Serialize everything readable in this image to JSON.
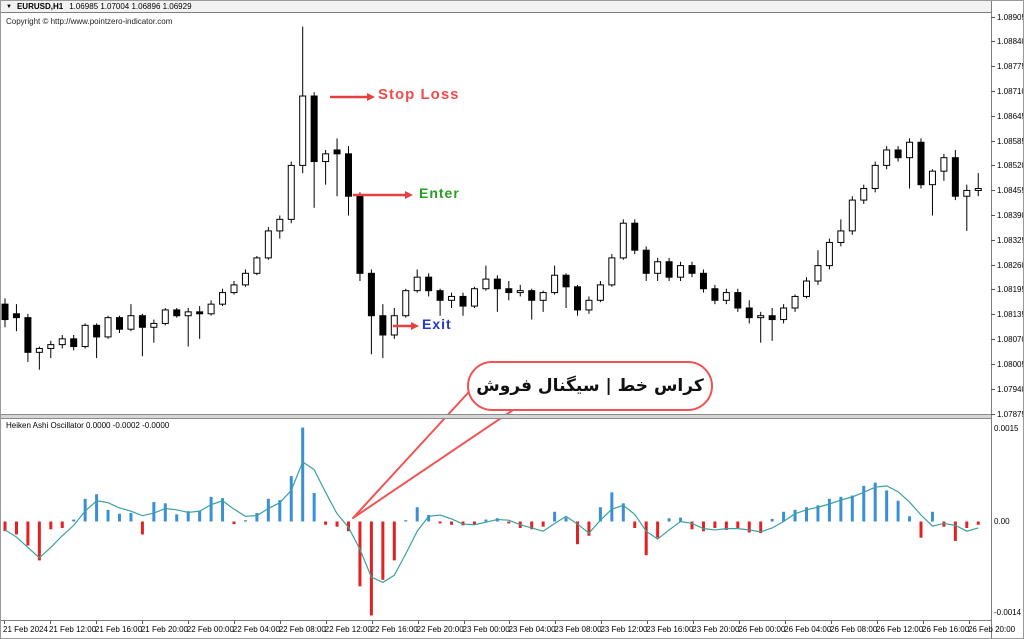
{
  "header": {
    "dropdown_icon": "▼",
    "symbol": "EURUSD,H1",
    "ohlc_quote": "1.06985 1.07004 1.06896 1.06929",
    "copyright": "Copyright © http://www.pointzero-indicator.com"
  },
  "annotations": {
    "stop_loss_label": "Stop Loss",
    "enter_label": "Enter",
    "exit_label": "Exit",
    "callout_text": "کراس خط | سیگنال فروش"
  },
  "oscillator_panel": {
    "label": "Heiken Ashi Oscillator 0.0000 -0.0002 -0.0000",
    "scale_labels": [
      "0.0015",
      "0.00",
      "-0.0014"
    ]
  },
  "price_axis": {
    "labels": [
      "1.08905",
      "1.08840",
      "1.08775",
      "1.08710",
      "1.08645",
      "1.08585",
      "1.08520",
      "1.08455",
      "1.08390",
      "1.08325",
      "1.08260",
      "1.08195",
      "1.08135",
      "1.08070",
      "1.08005",
      "1.07940",
      "1.07875"
    ]
  },
  "time_axis": {
    "labels": [
      "21 Feb 2024",
      "21 Feb 12:00",
      "21 Feb 16:00",
      "21 Feb 20:00",
      "22 Feb 00:00",
      "22 Feb 04:00",
      "22 Feb 08:00",
      "22 Feb 12:00",
      "22 Feb 16:00",
      "22 Feb 20:00",
      "23 Feb 00:00",
      "23 Feb 04:00",
      "23 Feb 08:00",
      "23 Feb 12:00",
      "23 Feb 16:00",
      "23 Feb 20:00",
      "26 Feb 00:00",
      "26 Feb 04:00",
      "26 Feb 08:00",
      "26 Feb 12:00",
      "26 Feb 16:00",
      "26 Feb 20:00"
    ]
  },
  "colors": {
    "bull_fill": "#ffffff",
    "bear_fill": "#000000",
    "candle_outline": "#000000",
    "hist_up": "#3b8fd4",
    "hist_down": "#e02222",
    "signal_line": "#3aa0a0",
    "arrow_red": "#e84040",
    "callout_border": "#f15353"
  },
  "chart_data": [
    {
      "type": "candlestick",
      "name": "EURUSD H1 price",
      "pip_base": 1.08,
      "pip_size": 0.0001,
      "y_range": [
        1.07875,
        1.08905
      ],
      "grid": false,
      "ohlc_pips": [
        [
          16,
          17.5,
          10,
          12
        ],
        [
          13.5,
          16,
          9,
          12.5
        ],
        [
          12.5,
          13.5,
          1,
          3.5
        ],
        [
          3.5,
          5,
          -1,
          4.5
        ],
        [
          4.5,
          6.5,
          2,
          5.5
        ],
        [
          5.5,
          8,
          4.5,
          7
        ],
        [
          7,
          8,
          4,
          5
        ],
        [
          5,
          11,
          4.5,
          10.5
        ],
        [
          10.5,
          11,
          2,
          7.5
        ],
        [
          7.5,
          13,
          7,
          12.5
        ],
        [
          12.5,
          13,
          8.5,
          9.5
        ],
        [
          9.5,
          16,
          9,
          13
        ],
        [
          13,
          13.5,
          2.5,
          10
        ],
        [
          10,
          12,
          6,
          11
        ],
        [
          11,
          15,
          10.5,
          14.5
        ],
        [
          14.5,
          15,
          12.5,
          13
        ],
        [
          13,
          15,
          5,
          14
        ],
        [
          14,
          15.5,
          7,
          13.5
        ],
        [
          13.5,
          17,
          13,
          16
        ],
        [
          16,
          20,
          15.5,
          19
        ],
        [
          19,
          22,
          18.5,
          21
        ],
        [
          21,
          25,
          20.5,
          24
        ],
        [
          24,
          28.5,
          23.5,
          28
        ],
        [
          28,
          36,
          27.5,
          35
        ],
        [
          35,
          39,
          33,
          38
        ],
        [
          38,
          53,
          37,
          52
        ],
        [
          52,
          88,
          50,
          70
        ],
        [
          70,
          71,
          41,
          53
        ],
        [
          53,
          56,
          47,
          55
        ],
        [
          56,
          59,
          44,
          55
        ],
        [
          55,
          57,
          39,
          44
        ],
        [
          44,
          45,
          22,
          24
        ],
        [
          24,
          25,
          3,
          13
        ],
        [
          13,
          16,
          2,
          8
        ],
        [
          8,
          15,
          7,
          13
        ],
        [
          13,
          20,
          12.5,
          19.5
        ],
        [
          19.5,
          25,
          19,
          23
        ],
        [
          23,
          24,
          18,
          19.5
        ],
        [
          19.5,
          20,
          13,
          17
        ],
        [
          17,
          19,
          15,
          18
        ],
        [
          18,
          19,
          13,
          15.5
        ],
        [
          15.5,
          20.5,
          15,
          20
        ],
        [
          20,
          26,
          19.5,
          22.5
        ],
        [
          22.5,
          23.5,
          14,
          20
        ],
        [
          20,
          22,
          17,
          19
        ],
        [
          19,
          21,
          18,
          19.5
        ],
        [
          19.5,
          20,
          12,
          17
        ],
        [
          17,
          19.5,
          14,
          19
        ],
        [
          19,
          26,
          18.5,
          23.5
        ],
        [
          23.5,
          24,
          15,
          20.5
        ],
        [
          20.5,
          21,
          13,
          14.5
        ],
        [
          14.5,
          18,
          13.5,
          17
        ],
        [
          17,
          22,
          16.5,
          21
        ],
        [
          21,
          29,
          20.5,
          28
        ],
        [
          28,
          38,
          27.5,
          37
        ],
        [
          37,
          38,
          29,
          30
        ],
        [
          30,
          31,
          22,
          24
        ],
        [
          24,
          28,
          22,
          27
        ],
        [
          27,
          28,
          22,
          23
        ],
        [
          23,
          27,
          22,
          26
        ],
        [
          26,
          27,
          23,
          24
        ],
        [
          24,
          25,
          19,
          20
        ],
        [
          20,
          21,
          16,
          17
        ],
        [
          17,
          20,
          16,
          19
        ],
        [
          19,
          20,
          14,
          15
        ],
        [
          15,
          17,
          11,
          12.5
        ],
        [
          12.5,
          14,
          6,
          13
        ],
        [
          13,
          15,
          6.5,
          12
        ],
        [
          12,
          16,
          11,
          15
        ],
        [
          15,
          18.5,
          14,
          18
        ],
        [
          18,
          23,
          17.5,
          22
        ],
        [
          22,
          30,
          21,
          26
        ],
        [
          26,
          33,
          25,
          32
        ],
        [
          32,
          38,
          31,
          35
        ],
        [
          35,
          44,
          34,
          43
        ],
        [
          43,
          47,
          42,
          46
        ],
        [
          46,
          53,
          45,
          52
        ],
        [
          52,
          57,
          51,
          56
        ],
        [
          56,
          57,
          53,
          54
        ],
        [
          54,
          59,
          46,
          58
        ],
        [
          58,
          59,
          46,
          47
        ],
        [
          47,
          51,
          39,
          50.5
        ],
        [
          50.5,
          55,
          48,
          54
        ],
        [
          54,
          56,
          43,
          44
        ],
        [
          44,
          47,
          35,
          45.5
        ],
        [
          45.5,
          50,
          44,
          46
        ]
      ]
    },
    {
      "type": "bar",
      "name": "Heiken Ashi Oscillator",
      "unit": 0.0001,
      "ylim": [
        -0.0014,
        0.0015
      ],
      "values_pips": [
        -1.5,
        -2,
        -3.7,
        -6,
        -1.2,
        -1,
        0.3,
        3.5,
        4.2,
        1.8,
        1.2,
        1.3,
        -2,
        3,
        2.8,
        1.1,
        1.6,
        1.7,
        3.8,
        3.6,
        -0.4,
        0.2,
        1.3,
        3.5,
        3.3,
        7,
        14.5,
        4.4,
        -0.5,
        -0.8,
        -1.5,
        -10,
        -14.5,
        -9,
        -6,
        0.2,
        2.2,
        1,
        -0.3,
        -0.5,
        -0.6,
        -0.4,
        0.3,
        0.5,
        -0.3,
        -1,
        -1.2,
        -0.8,
        1.5,
        0.6,
        -3.5,
        -2.2,
        2.2,
        4.5,
        2.8,
        -1,
        -5.2,
        -2.5,
        0.5,
        0.6,
        -1.2,
        -1.5,
        -1,
        -1.3,
        -1,
        -1.7,
        -1.8,
        0.4,
        1.5,
        1.8,
        2.2,
        2.5,
        3.5,
        3.8,
        4,
        5.5,
        6,
        4.8,
        3.2,
        0.8,
        -2.5,
        1.5,
        -0.8,
        -3,
        -1,
        -0.5
      ],
      "signal_pips": [
        -1.3,
        -2.4,
        -4,
        -5.6,
        -4,
        -2.2,
        -0.6,
        1.6,
        3.2,
        2.9,
        2.1,
        1.6,
        0.9,
        1.3,
        2,
        1.8,
        1.4,
        1.6,
        2.6,
        3.2,
        1.9,
        0.8,
        0.9,
        2,
        2.9,
        4.8,
        9.2,
        8,
        4.5,
        1.2,
        -0.9,
        -4.3,
        -8.6,
        -9.4,
        -8.3,
        -5,
        -1.5,
        0.8,
        1,
        0.4,
        -0.4,
        -0.5,
        -0.1,
        0.3,
        0.2,
        -0.5,
        -1,
        -1.5,
        -0.3,
        0.8,
        -0.4,
        -1.8,
        0.2,
        1.9,
        2.5,
        1.1,
        -1.5,
        -2.7,
        -1.3,
        0,
        -0.3,
        -1.1,
        -1.3,
        -1.1,
        -1.1,
        -1.3,
        -1.6,
        -1,
        0,
        1.2,
        1.8,
        2.2,
        2.7,
        3.3,
        3.8,
        4.5,
        5.3,
        5.5,
        4.6,
        3,
        1,
        -0.7,
        -0.3,
        -0.6,
        -1.5,
        -1
      ]
    }
  ]
}
